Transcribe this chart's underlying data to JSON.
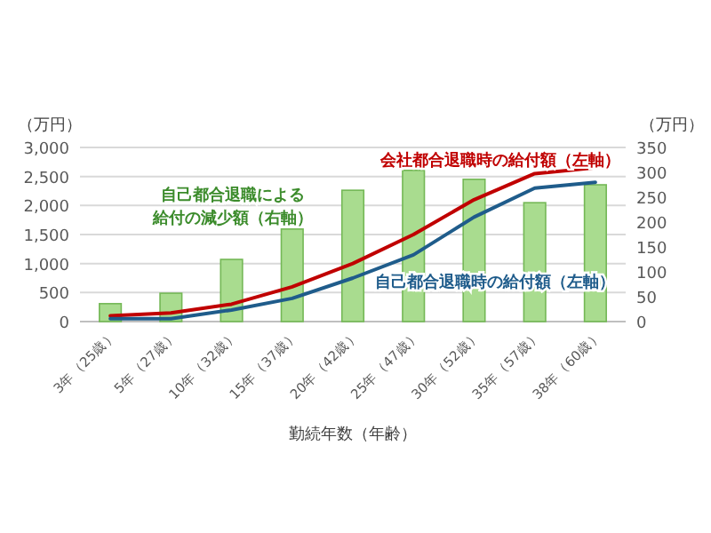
{
  "chart_data": {
    "type": "bar",
    "categories": [
      "3年（25歳）",
      "5年（27歳）",
      "10年（32歳）",
      "15年（37歳）",
      "20年（42歳）",
      "25年（47歳）",
      "30年（52歳）",
      "35年（57歳）",
      "38年（60歳）"
    ],
    "series": [
      {
        "name": "自己都合退職による給付の減少額（右軸）",
        "axis": "y2",
        "color": "#a9dc8f",
        "values": [
          36,
          57,
          125,
          186,
          264,
          304,
          286,
          239,
          275
        ]
      },
      {
        "name": "会社都合退職時の給付額（左軸）",
        "type": "line",
        "color": "#c00000",
        "values": [
          100,
          150,
          300,
          600,
          1000,
          1500,
          2100,
          2550,
          2650
        ]
      },
      {
        "name": "自己都合退職時の給付額（左軸）",
        "type": "line",
        "color": "#1f5c8b",
        "values": [
          50,
          50,
          200,
          400,
          750,
          1150,
          1800,
          2300,
          2400
        ]
      }
    ],
    "xlabel": "勤続年数（年齢）",
    "ylabel": "（万円）",
    "y2label": "（万円）",
    "ylim": [
      0,
      3000
    ],
    "yticks": [
      0,
      500,
      {
        "value": 1000,
        "label": "1,000"
      },
      {
        "value": 1500,
        "label": "1,500"
      },
      {
        "value": 2000,
        "label": "2,000"
      },
      {
        "value": 2500,
        "label": "2,500"
      },
      {
        "value": 3000,
        "label": "3,000"
      }
    ],
    "y2lim": [
      0,
      350
    ],
    "y2ticks": [
      0,
      50,
      100,
      150,
      200,
      250,
      300,
      350
    ],
    "grid": "y",
    "legend": false
  }
}
